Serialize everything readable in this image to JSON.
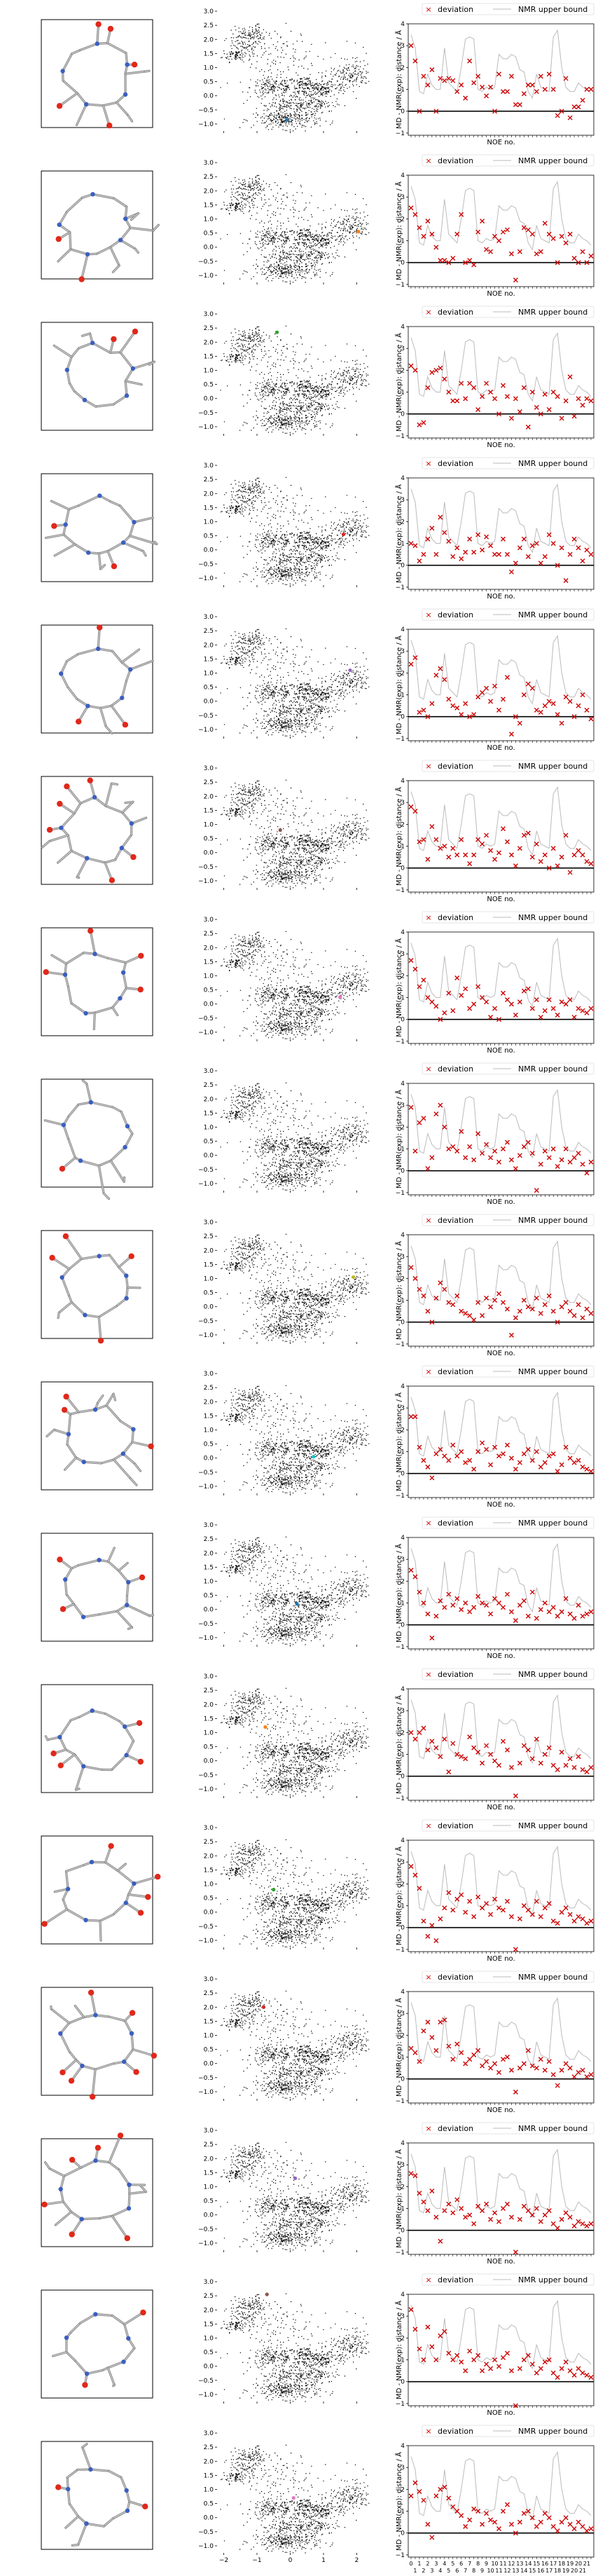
{
  "chart_data": {
    "type": "scatter",
    "rows": 17,
    "panels_per_row": [
      "molecule-structure",
      "embedding-scatter",
      "noe-deviation"
    ],
    "embedding": {
      "type": "scatter",
      "xlim": [
        -2.2,
        2.6
      ],
      "ylim": [
        -1.25,
        3.15
      ],
      "xticks": [
        -2,
        -1,
        0,
        1,
        2
      ],
      "yticks": [
        -1.0,
        -0.5,
        0.0,
        0.5,
        1.0,
        1.5,
        2.0,
        2.5,
        3.0
      ],
      "ytick_labels": [
        "−1.0",
        "−0.5",
        "0.0",
        "0.5",
        "1.0",
        "1.5",
        "2.0",
        "2.5",
        "3.0"
      ],
      "point_color": "#000000",
      "highlight_colors": [
        "#1f77b4",
        "#ff7f0e",
        "#2ca02c",
        "#d62728",
        "#9467bd",
        "#8c564b",
        "#e377c2",
        "#7f7f7f",
        "#bcbd22",
        "#17becf"
      ],
      "highlights": [
        [
          -0.1,
          -0.85
        ],
        [
          2.05,
          0.55
        ],
        [
          -0.4,
          2.35
        ],
        [
          1.6,
          0.55
        ],
        [
          1.8,
          1.1
        ],
        [
          -0.3,
          0.8
        ],
        [
          1.5,
          0.25
        ],
        [
          -0.6,
          0.25
        ],
        [
          1.9,
          1.05
        ],
        [
          0.7,
          0.05
        ],
        [
          0.2,
          0.2
        ],
        [
          -0.75,
          1.2
        ],
        [
          -0.5,
          0.8
        ],
        [
          -0.8,
          2.0
        ],
        [
          0.15,
          1.3
        ],
        [
          -0.7,
          2.55
        ],
        [
          0.1,
          0.7
        ]
      ]
    },
    "noe": {
      "type": "scatter",
      "xlabel": "NOE no.",
      "ylabel": "MD - NMR(exp): distance / Å",
      "ylim": [
        -1.1,
        4.0
      ],
      "yticks": [
        -1,
        0,
        1,
        2,
        3,
        4
      ],
      "ytick_labels": [
        "−1",
        "0",
        "1",
        "2",
        "3",
        "4"
      ],
      "legend": [
        "deviation",
        "NMR upper bound"
      ],
      "legend_position": "top",
      "n_points": 44,
      "marker": "x",
      "marker_color": "#cc0000",
      "bound_color": "#bbbbbb",
      "zero_line_color": "#000000",
      "x_tick_labels_top": [
        "0",
        "1",
        "2",
        "3",
        "4",
        "5",
        "6",
        "7",
        "8",
        "9",
        "10",
        "11",
        "12",
        "13",
        "14",
        "15",
        "16",
        "17",
        "18",
        "19",
        "20",
        "21"
      ],
      "x_tick_labels_bottom": [
        "1",
        "2",
        "3",
        "4",
        "5",
        "6",
        "7",
        "8",
        "9",
        "10",
        "11",
        "12",
        "13",
        "14",
        "15",
        "16",
        "17",
        "18",
        "19",
        "20",
        "21"
      ],
      "upper_bound": [
        3.5,
        2.9,
        0.9,
        0.8,
        1.7,
        1.2,
        1.0,
        1.0,
        2.9,
        1.3,
        1.1,
        0.9,
        2.0,
        3.3,
        3.4,
        3.3,
        1.0,
        0.9,
        1.1,
        1.0,
        1.1,
        2.6,
        2.4,
        2.4,
        2.6,
        2.5,
        1.9,
        1.8,
        0.9,
        0.6,
        1.7,
        1.1,
        1.0,
        0.9,
        3.4,
        3.7,
        2.0,
        1.1,
        0.9,
        0.9,
        1.3,
        1.1,
        1.0,
        0.8
      ],
      "deviations": [
        [
          3.0,
          2.3,
          0.0,
          1.6,
          1.2,
          1.9,
          0.0,
          1.5,
          1.4,
          1.5,
          1.4,
          0.9,
          1.2,
          0.6,
          2.3,
          1.3,
          1.6,
          1.1,
          0.7,
          1.1,
          0.0,
          1.7,
          0.9,
          0.9,
          1.6,
          0.3,
          0.3,
          0.8,
          1.2,
          1.2,
          0.9,
          1.6,
          1.0,
          1.7,
          1.0,
          -0.2,
          0.0,
          1.5,
          -0.3,
          0.2,
          0.2,
          0.5,
          1.0,
          1.0
        ],
        [
          2.5,
          2.2,
          1.6,
          1.2,
          1.9,
          1.3,
          0.7,
          0.1,
          0.1,
          0.0,
          0.2,
          1.3,
          2.2,
          0.0,
          0.1,
          -0.1,
          1.4,
          1.9,
          0.6,
          0.5,
          1.2,
          1.0,
          1.4,
          1.5,
          0.4,
          -0.8,
          0.5,
          1.6,
          1.5,
          1.3,
          0.4,
          0.5,
          1.8,
          1.3,
          1.1,
          0.0,
          1.2,
          0.9,
          1.3,
          0.2,
          0.0,
          0.5,
          0.0,
          0.3
        ],
        [
          2.2,
          2.0,
          -0.5,
          -0.4,
          1.2,
          1.9,
          2.0,
          2.1,
          1.6,
          1.0,
          0.6,
          0.6,
          1.4,
          0.7,
          1.4,
          1.2,
          0.2,
          0.8,
          1.4,
          1.0,
          0.7,
          0.0,
          1.3,
          0.8,
          -0.2,
          0.7,
          0.1,
          1.2,
          -0.6,
          1.0,
          0.3,
          0.0,
          0.9,
          0.2,
          1.0,
          0.8,
          -0.2,
          0.6,
          1.7,
          -0.1,
          0.7,
          0.4,
          0.7,
          0.6
        ],
        [
          1.0,
          0.9,
          0.2,
          0.5,
          1.2,
          1.7,
          0.5,
          2.2,
          1.5,
          1.1,
          0.4,
          0.8,
          0.3,
          0.6,
          1.2,
          0.6,
          1.4,
          0.7,
          1.3,
          0.9,
          0.5,
          0.5,
          1.2,
          0.5,
          -0.3,
          0.1,
          0.8,
          1.2,
          0.4,
          0.9,
          1.0,
          0.1,
          0.4,
          1.4,
          1.0,
          0.0,
          0.8,
          -0.7,
          0.5,
          1.2,
          0.8,
          0.2,
          0.7,
          0.5
        ],
        [
          2.4,
          2.7,
          0.2,
          0.3,
          0.0,
          0.6,
          1.9,
          2.2,
          1.7,
          0.8,
          0.5,
          0.4,
          0.1,
          0.6,
          0.0,
          0.1,
          0.9,
          1.1,
          1.3,
          0.7,
          1.4,
          0.3,
          0.8,
          1.8,
          -0.8,
          0.0,
          -0.3,
          1.0,
          1.5,
          1.3,
          0.3,
          0.2,
          0.5,
          0.7,
          0.6,
          0.1,
          -0.3,
          0.9,
          0.7,
          0.0,
          0.5,
          1.0,
          0.3,
          -0.1
        ],
        [
          2.8,
          2.6,
          1.2,
          1.3,
          0.4,
          1.9,
          1.3,
          0.9,
          1.0,
          0.5,
          0.9,
          0.6,
          1.3,
          0.6,
          0.2,
          0.6,
          1.3,
          1.1,
          1.5,
          0.8,
          0.4,
          0.7,
          1.8,
          1.2,
          0.6,
          0.1,
          0.9,
          1.5,
          1.6,
          0.5,
          1.1,
          0.3,
          0.6,
          0.0,
          0.9,
          0.1,
          0.5,
          1.5,
          -0.2,
          0.6,
          0.8,
          0.6,
          0.3,
          0.2
        ],
        [
          2.7,
          2.3,
          1.5,
          1.8,
          1.0,
          0.8,
          0.6,
          0.0,
          0.3,
          1.2,
          0.4,
          1.9,
          1.1,
          1.4,
          0.5,
          0.7,
          1.5,
          1.0,
          0.8,
          0.1,
          0.5,
          0.0,
          1.2,
          0.9,
          0.7,
          0.2,
          0.8,
          1.3,
          1.4,
          0.5,
          0.9,
          0.1,
          0.4,
          0.9,
          0.5,
          0.2,
          0.8,
          0.7,
          0.9,
          0.1,
          0.5,
          0.4,
          0.3,
          0.5
        ],
        [
          2.9,
          0.9,
          2.2,
          2.4,
          0.1,
          0.6,
          2.6,
          3.0,
          2.0,
          1.0,
          1.1,
          0.9,
          1.8,
          0.6,
          1.1,
          0.5,
          1.7,
          0.8,
          1.2,
          0.6,
          0.9,
          0.4,
          1.0,
          1.3,
          0.5,
          0.1,
          0.7,
          1.1,
          1.3,
          0.8,
          -0.9,
          0.3,
          0.9,
          0.6,
          1.0,
          0.2,
          0.5,
          1.0,
          0.4,
          0.6,
          0.8,
          0.3,
          -0.1,
          0.4
        ],
        [
          2.5,
          2.0,
          1.5,
          1.2,
          0.5,
          0.0,
          1.1,
          1.8,
          1.5,
          0.9,
          0.8,
          1.2,
          0.5,
          0.4,
          0.3,
          0.1,
          0.9,
          0.3,
          1.1,
          0.7,
          1.0,
          1.3,
          0.9,
          0.6,
          -0.6,
          0.2,
          0.5,
          1.0,
          0.7,
          0.6,
          1.1,
          0.4,
          0.8,
          1.2,
          0.5,
          0.0,
          0.7,
          0.9,
          0.5,
          0.3,
          0.8,
          0.2,
          0.6,
          0.4
        ],
        [
          2.6,
          2.6,
          1.2,
          0.6,
          0.3,
          -0.2,
          0.9,
          1.1,
          0.8,
          0.6,
          1.3,
          0.8,
          1.0,
          0.5,
          0.6,
          0.2,
          1.0,
          1.4,
          1.1,
          0.4,
          1.2,
          0.8,
          0.9,
          1.3,
          0.7,
          0.2,
          0.5,
          0.9,
          1.1,
          0.6,
          1.0,
          0.3,
          0.5,
          0.8,
          0.9,
          0.1,
          0.4,
          1.2,
          0.7,
          0.5,
          0.6,
          0.3,
          0.2,
          0.1
        ],
        [
          2.5,
          2.2,
          1.5,
          1.0,
          0.5,
          -0.6,
          0.4,
          1.1,
          0.8,
          1.4,
          0.9,
          1.2,
          0.7,
          1.0,
          0.6,
          0.8,
          1.3,
          1.0,
          0.9,
          0.5,
          1.2,
          1.0,
          0.8,
          1.4,
          0.6,
          0.2,
          0.9,
          1.1,
          0.4,
          1.5,
          0.3,
          0.7,
          1.0,
          0.6,
          0.8,
          0.4,
          0.6,
          1.2,
          0.5,
          0.3,
          0.9,
          0.4,
          0.5,
          0.6
        ],
        [
          2.0,
          1.7,
          2.0,
          2.2,
          1.2,
          1.6,
          1.3,
          0.9,
          1.7,
          0.2,
          1.5,
          1.0,
          0.9,
          0.8,
          1.8,
          1.3,
          1.1,
          0.6,
          1.4,
          1.0,
          0.7,
          0.5,
          1.6,
          1.2,
          0.4,
          -0.9,
          0.6,
          1.4,
          1.2,
          0.8,
          1.7,
          0.6,
          1.0,
          1.3,
          0.5,
          0.3,
          1.1,
          0.5,
          0.8,
          0.4,
          0.9,
          0.3,
          0.2,
          0.4
        ],
        [
          2.8,
          2.4,
          1.8,
          0.3,
          -0.4,
          0.1,
          -0.6,
          0.4,
          0.9,
          1.6,
          0.8,
          1.3,
          1.5,
          0.7,
          1.2,
          0.5,
          1.4,
          0.9,
          1.1,
          0.6,
          1.3,
          0.9,
          0.8,
          1.2,
          0.5,
          -1.0,
          0.4,
          1.0,
          0.8,
          0.6,
          1.2,
          0.5,
          0.9,
          1.1,
          0.3,
          0.2,
          0.7,
          0.9,
          0.6,
          0.3,
          0.5,
          0.4,
          0.2,
          0.3
        ],
        [
          1.4,
          1.2,
          0.8,
          2.2,
          2.6,
          1.9,
          1.3,
          2.6,
          2.7,
          1.5,
          0.9,
          1.6,
          1.2,
          0.7,
          0.9,
          1.1,
          1.3,
          0.6,
          0.8,
          0.5,
          0.7,
          0.3,
          0.9,
          1.0,
          0.4,
          -0.6,
          0.5,
          0.7,
          1.3,
          0.6,
          0.5,
          0.9,
          0.4,
          0.8,
          0.2,
          -0.3,
          0.4,
          0.7,
          0.5,
          0.1,
          0.3,
          0.4,
          0.1,
          0.2
        ],
        [
          2.6,
          2.5,
          1.7,
          1.3,
          0.9,
          1.8,
          0.6,
          -0.5,
          0.9,
          1.2,
          0.8,
          1.4,
          1.0,
          0.6,
          0.7,
          0.3,
          1.1,
          0.9,
          1.2,
          0.5,
          0.8,
          0.4,
          1.0,
          1.2,
          0.6,
          -1.0,
          0.5,
          1.1,
          0.9,
          0.7,
          1.0,
          0.4,
          0.7,
          0.9,
          0.3,
          0.1,
          0.5,
          0.8,
          0.6,
          0.2,
          0.4,
          0.3,
          0.2,
          0.3
        ],
        [
          3.3,
          2.4,
          1.5,
          1.0,
          2.5,
          1.6,
          1.0,
          2.1,
          2.3,
          1.3,
          1.0,
          1.2,
          0.9,
          0.5,
          1.4,
          1.0,
          1.2,
          0.5,
          0.8,
          0.6,
          1.0,
          0.7,
          1.1,
          1.3,
          0.5,
          -1.1,
          0.6,
          1.0,
          1.2,
          0.8,
          0.4,
          0.6,
          0.9,
          1.0,
          0.4,
          0.2,
          0.6,
          0.9,
          0.5,
          0.3,
          0.6,
          0.4,
          0.3,
          0.2
        ],
        [
          1.7,
          2.3,
          1.9,
          1.5,
          0.4,
          -0.2,
          1.7,
          2.0,
          2.1,
          1.6,
          1.2,
          1.0,
          0.8,
          0.3,
          0.6,
          1.1,
          1.0,
          0.4,
          0.9,
          0.6,
          0.5,
          0.2,
          1.0,
          1.3,
          0.4,
          0.0,
          0.5,
          0.9,
          1.0,
          0.7,
          0.3,
          0.5,
          0.9,
          0.7,
          0.3,
          0.1,
          0.5,
          0.7,
          0.4,
          0.2,
          0.5,
          0.3,
          0.1,
          0.2
        ]
      ]
    }
  }
}
